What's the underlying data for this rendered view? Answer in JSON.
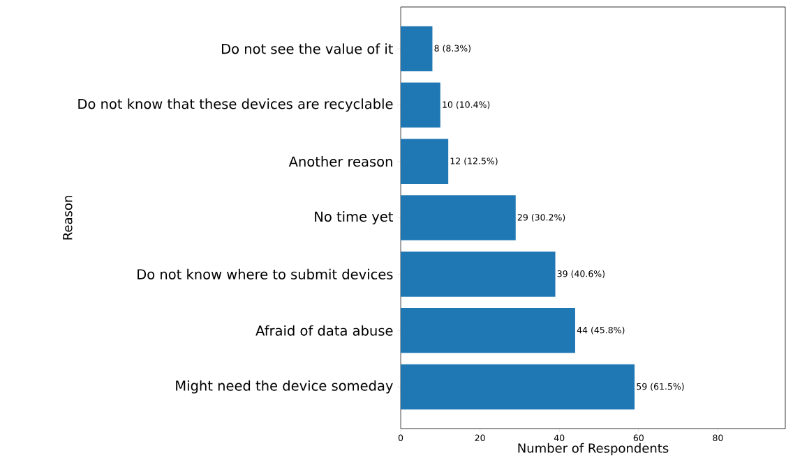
{
  "chart_data": {
    "type": "bar",
    "orientation": "horizontal",
    "categories": [
      "Do not see the value of it",
      "Do not know that these devices are recyclable",
      "Another reason",
      "No time yet",
      "Do not know where to submit devices",
      "Afraid of data abuse",
      "Might need the device someday"
    ],
    "values": [
      8,
      10,
      12,
      29,
      39,
      44,
      59
    ],
    "value_labels": [
      "8 (8.3%)",
      "10 (10.4%)",
      "12 (12.5%)",
      "29 (30.2%)",
      "39 (40.6%)",
      "44 (45.8%)",
      "59 (61.5%)"
    ],
    "color": "#1f77b4",
    "xlim": [
      0,
      97
    ],
    "xticks": [
      0,
      20,
      40,
      60,
      80
    ],
    "xlabel": "Number of Respondents",
    "ylabel": "Reason"
  }
}
